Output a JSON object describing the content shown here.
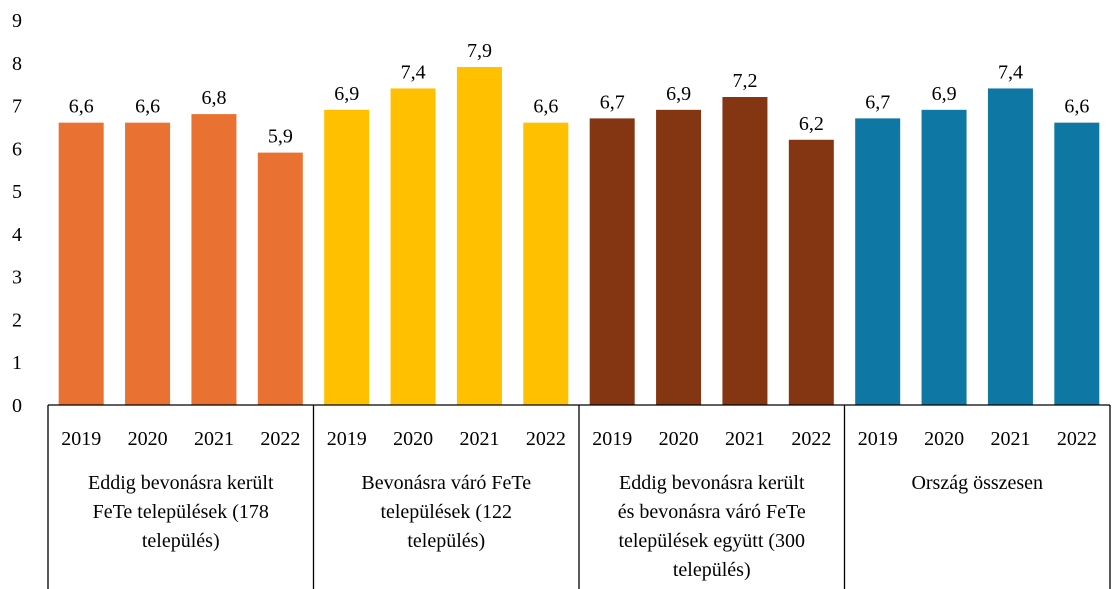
{
  "chart_data": {
    "type": "bar",
    "ylim": [
      0,
      9
    ],
    "yticks": [
      "0",
      "1",
      "2",
      "3",
      "4",
      "5",
      "6",
      "7",
      "8",
      "9"
    ],
    "grid": false,
    "legend": "none",
    "groups": [
      {
        "label_lines": [
          "Eddig bevonásra került",
          "FeTe települések (178",
          "település)"
        ],
        "color": "#E97132",
        "categories": [
          "2019",
          "2020",
          "2021",
          "2022"
        ],
        "values": [
          6.6,
          6.6,
          6.8,
          5.9
        ],
        "value_labels": [
          "6,6",
          "6,6",
          "6,8",
          "5,9"
        ]
      },
      {
        "label_lines": [
          "Bevonásra váró FeTe",
          "települések (122",
          "település)"
        ],
        "color": "#FFC000",
        "categories": [
          "2019",
          "2020",
          "2021",
          "2022"
        ],
        "values": [
          6.9,
          7.4,
          7.9,
          6.6
        ],
        "value_labels": [
          "6,9",
          "7,4",
          "7,9",
          "6,6"
        ]
      },
      {
        "label_lines": [
          "Eddig bevonásra került",
          "és bevonásra váró FeTe",
          "települések együtt (300",
          "település)"
        ],
        "color": "#843512",
        "categories": [
          "2019",
          "2020",
          "2021",
          "2022"
        ],
        "values": [
          6.7,
          6.9,
          7.2,
          6.2
        ],
        "value_labels": [
          "6,7",
          "6,9",
          "7,2",
          "6,2"
        ]
      },
      {
        "label_lines": [
          "Ország összesen"
        ],
        "color": "#0E77A4",
        "categories": [
          "2019",
          "2020",
          "2021",
          "2022"
        ],
        "values": [
          6.7,
          6.9,
          7.4,
          6.6
        ],
        "value_labels": [
          "6,7",
          "6,9",
          "7,4",
          "6,6"
        ]
      }
    ]
  }
}
